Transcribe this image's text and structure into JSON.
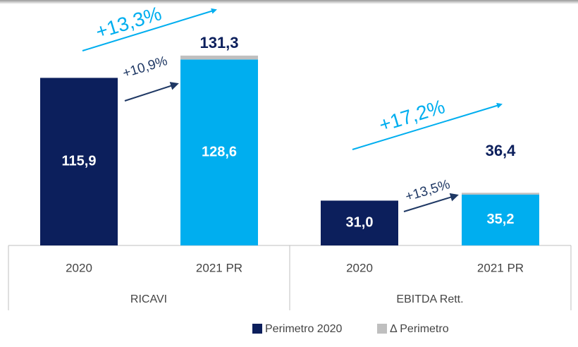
{
  "chart_data": {
    "type": "stacked_bar",
    "categories": [
      "2020",
      "2021 PR",
      "2020",
      "2021 PR"
    ],
    "groups": [
      "RICAVI",
      "EBITDA Rett."
    ],
    "ylim": [
      0,
      140
    ],
    "series": [
      {
        "name": "Perimetro 2020",
        "color": "#0c1f5c",
        "bar_colors": [
          "#0c1f5c",
          "#00aeef",
          "#0c1f5c",
          "#00aeef"
        ],
        "values": [
          115.9,
          128.6,
          31.0,
          35.2
        ],
        "value_labels": [
          "115,9",
          "128,6",
          "31,0",
          "35,2"
        ]
      },
      {
        "name": "Δ Perimetro",
        "color": "#bfbfbf",
        "values": [
          null,
          2.7,
          null,
          1.2
        ]
      }
    ],
    "totals": [
      null,
      131.3,
      null,
      36.4
    ],
    "total_labels": [
      null,
      "131,3",
      null,
      "36,4"
    ],
    "annotations": [
      "+13,3%",
      "+10,9%",
      "+17,2%",
      "+13,5%"
    ]
  }
}
